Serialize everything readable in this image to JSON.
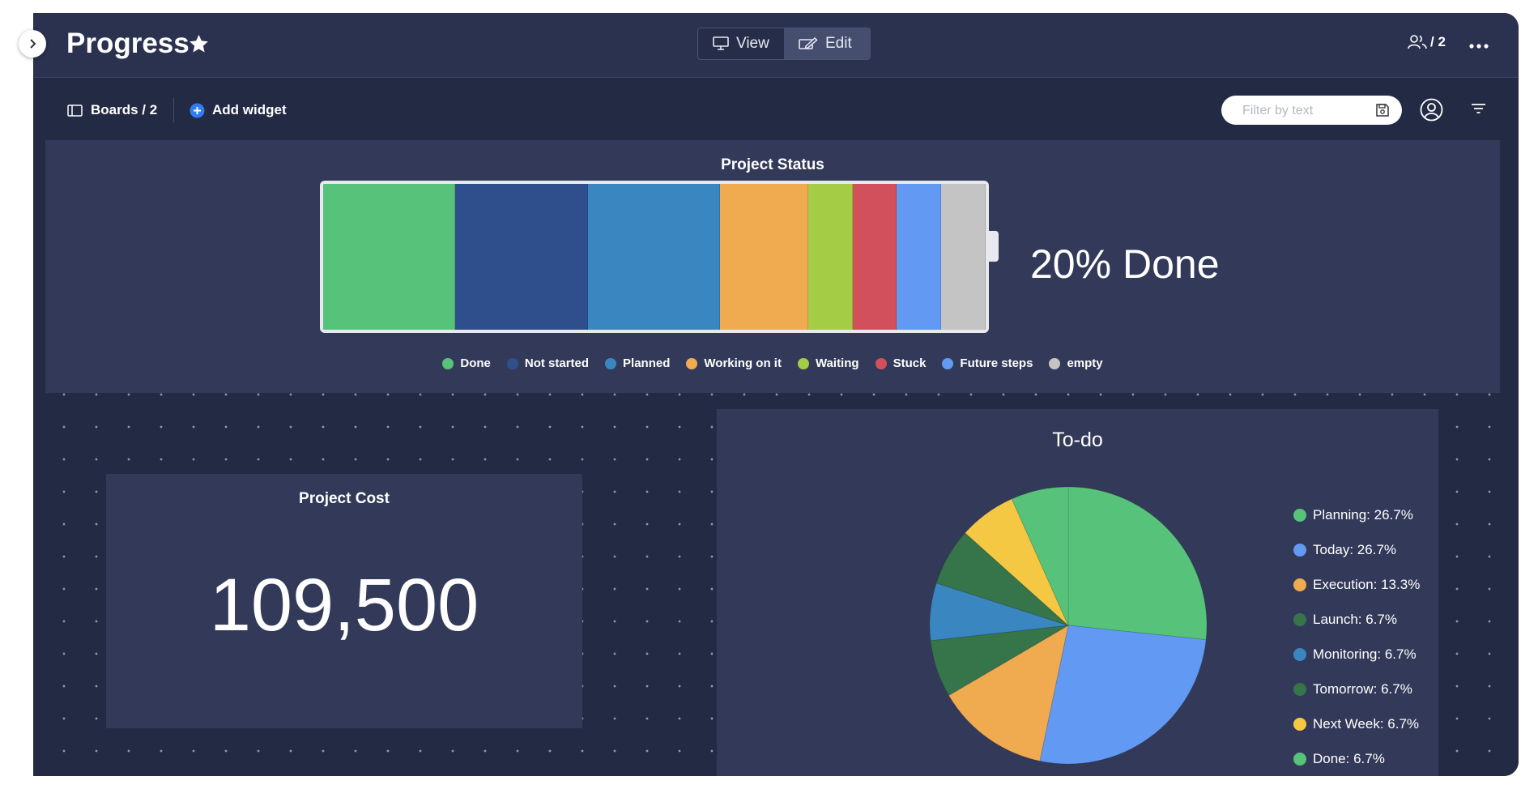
{
  "header": {
    "title": "Progress",
    "view_label": "View",
    "edit_label": "Edit",
    "share_count": "/ 2"
  },
  "toolbar": {
    "boards_label": "Boards / 2",
    "add_widget_label": "Add widget",
    "filter_placeholder": "Filter by text"
  },
  "widgets": {
    "project_status": {
      "title": "Project Status",
      "done_text": "20% Done",
      "legend": [
        {
          "label": "Done",
          "color": "#57c27a"
        },
        {
          "label": "Not started",
          "color": "#2f4f8c"
        },
        {
          "label": "Planned",
          "color": "#3a86c0"
        },
        {
          "label": "Working on it",
          "color": "#f0ab50"
        },
        {
          "label": "Waiting",
          "color": "#a4cd45"
        },
        {
          "label": "Stuck",
          "color": "#d1505c"
        },
        {
          "label": "Future steps",
          "color": "#629af3"
        },
        {
          "label": "empty",
          "color": "#c4c4c4"
        }
      ]
    },
    "project_cost": {
      "title": "Project Cost",
      "value": "109,500"
    },
    "todo": {
      "title": "To-do",
      "legend": [
        {
          "label": "Planning: 26.7%",
          "color": "#57c27a"
        },
        {
          "label": "Today: 26.7%",
          "color": "#629af3"
        },
        {
          "label": "Execution: 13.3%",
          "color": "#f0ab50"
        },
        {
          "label": "Launch: 6.7%",
          "color": "#36744a"
        },
        {
          "label": "Monitoring: 6.7%",
          "color": "#3a86c0"
        },
        {
          "label": "Tomorrow: 6.7%",
          "color": "#36744a"
        },
        {
          "label": "Next Week: 6.7%",
          "color": "#f4c843"
        },
        {
          "label": "Done: 6.7%",
          "color": "#57c27a"
        }
      ]
    }
  },
  "chart_data": [
    {
      "type": "bar",
      "title": "Project Status",
      "categories": [
        "Done",
        "Not started",
        "Planned",
        "Working on it",
        "Waiting",
        "Stuck",
        "Future steps",
        "empty"
      ],
      "values": [
        20,
        20,
        20,
        13.3,
        6.7,
        6.7,
        6.7,
        6.7
      ],
      "colors": [
        "#57c27a",
        "#2f4f8c",
        "#3a86c0",
        "#f0ab50",
        "#a4cd45",
        "#d1505c",
        "#629af3",
        "#c4c4c4"
      ],
      "orientation": "stacked-horizontal"
    },
    {
      "type": "pie",
      "title": "To-do",
      "categories": [
        "Planning",
        "Today",
        "Execution",
        "Launch",
        "Monitoring",
        "Tomorrow",
        "Next Week",
        "Done"
      ],
      "values": [
        26.7,
        26.7,
        13.3,
        6.7,
        6.7,
        6.7,
        6.7,
        6.7
      ],
      "colors": [
        "#57c27a",
        "#629af3",
        "#f0ab50",
        "#36744a",
        "#3a86c0",
        "#36744a",
        "#f4c843",
        "#57c27a"
      ]
    }
  ]
}
